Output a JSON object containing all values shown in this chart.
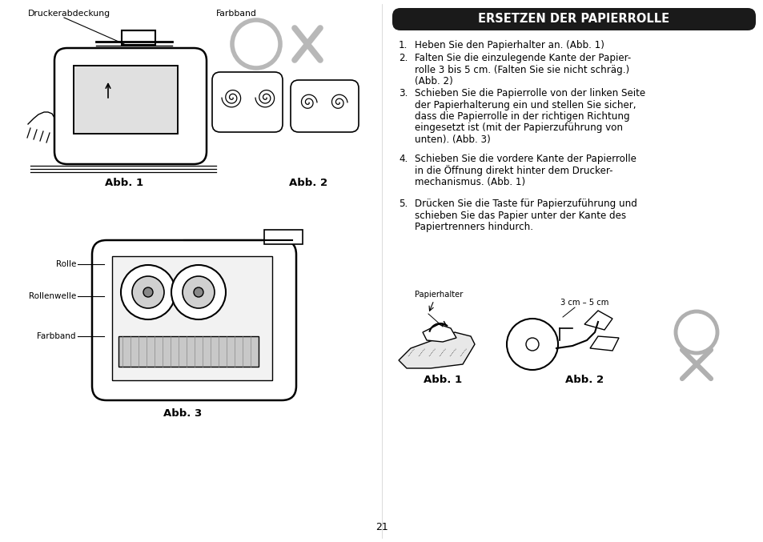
{
  "bg_color": "#ffffff",
  "title_text": "ERSETZEN DER PAPIERROLLE",
  "title_bg": "#1a1a1a",
  "title_text_color": "#ffffff",
  "body_text_color": "#000000",
  "page_number": "21",
  "right_items": [
    {
      "num": "1.",
      "text": "Heben Sie den Papierhalter an. (Abb. 1)"
    },
    {
      "num": "2.",
      "text": "Falten Sie die einzulegende Kante der Papier-\nrolle 3 bis 5 cm. (Falten Sie sie nicht schräg.)\n(Abb. 2)"
    },
    {
      "num": "3.",
      "text": "Schieben Sie die Papierrolle von der linken Seite\nder Papierhalterung ein und stellen Sie sicher,\ndass die Papierrolle in der richtigen Richtung\neingesetzt ist (mit der Papierzuführung von\nunten). (Abb. 3)"
    },
    {
      "num": "4.",
      "text": "Schieben Sie die vordere Kante der Papierrolle\nin die Öffnung direkt hinter dem Drucker-\nmechanismus. (Abb. 1)"
    },
    {
      "num": "5.",
      "text": "Drücken Sie die Taste für Papierzuführung und\nschieben Sie das Papier unter der Kante des\nPapiertrenners hindurch."
    }
  ],
  "left_labels": {
    "druckerabdeckung": "Druckerabdeckung",
    "farbband_top": "Farbband",
    "abb1_cap": "Abb. 1",
    "abb2_cap": "Abb. 2",
    "abb3_cap": "Abb. 3",
    "rolle": "Rolle",
    "rollenwelle": "Rollenwelle",
    "farbband3": "Farbband",
    "papierhalter": "Papierhalter",
    "measure": "3 cm – 5 cm"
  }
}
